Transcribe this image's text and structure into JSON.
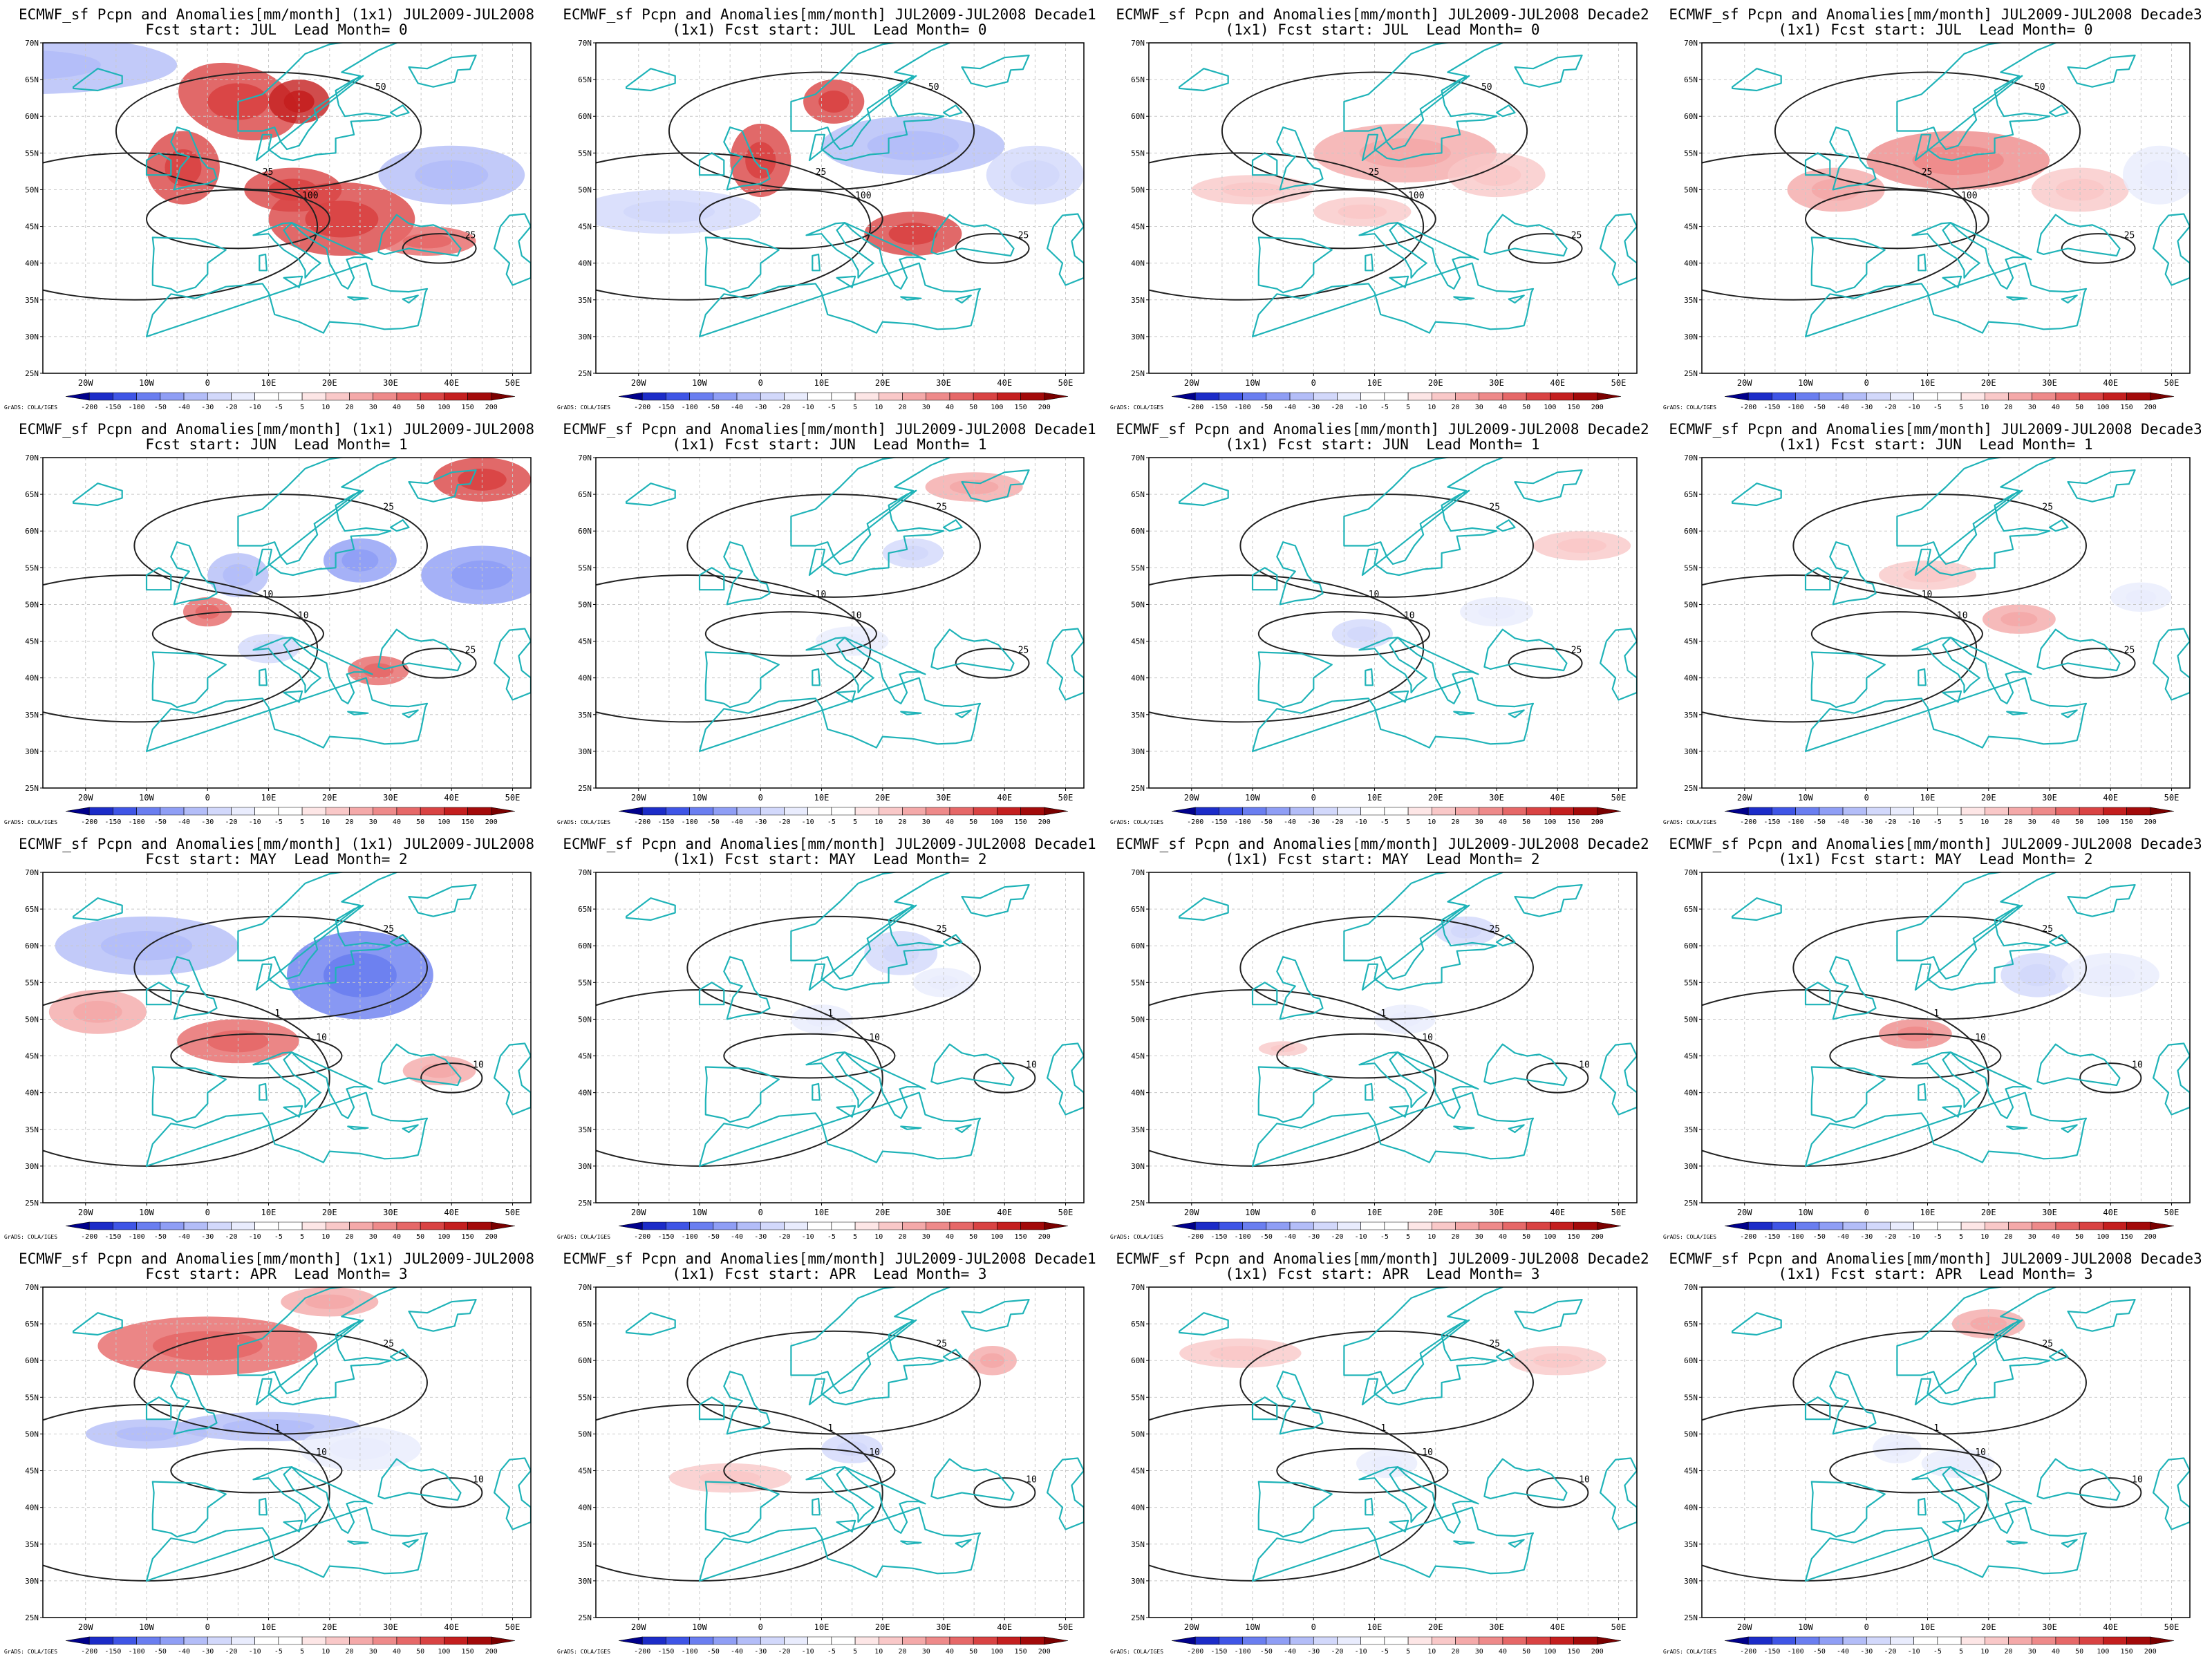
{
  "figure": {
    "rows": [
      {
        "panels": [
          {
            "title_line1": "ECMWF_sf Pcpn and Anomalies[mm/month] (1x1) JUL2009-JUL2008",
            "title_line2": "Fcst start: JUL  Lead Month= 0"
          },
          {
            "title_line1": "ECMWF_sf Pcpn and Anomalies[mm/month] JUL2009-JUL2008 Decade1",
            "title_line2": "(1x1) Fcst start: JUL  Lead Month= 0"
          },
          {
            "title_line1": "ECMWF_sf Pcpn and Anomalies[mm/month] JUL2009-JUL2008 Decade2",
            "title_line2": "(1x1) Fcst start: JUL  Lead Month= 0"
          },
          {
            "title_line1": "ECMWF_sf Pcpn and Anomalies[mm/month] JUL2009-JUL2008 Decade3",
            "title_line2": "(1x1) Fcst start: JUL  Lead Month= 0"
          }
        ]
      },
      {
        "panels": [
          {
            "title_line1": "ECMWF_sf Pcpn and Anomalies[mm/month] (1x1) JUL2009-JUL2008",
            "title_line2": "Fcst start: JUN  Lead Month= 1"
          },
          {
            "title_line1": "ECMWF_sf Pcpn and Anomalies[mm/month] JUL2009-JUL2008 Decade1",
            "title_line2": "(1x1) Fcst start: JUN  Lead Month= 1"
          },
          {
            "title_line1": "ECMWF_sf Pcpn and Anomalies[mm/month] JUL2009-JUL2008 Decade2",
            "title_line2": "(1x1) Fcst start: JUN  Lead Month= 1"
          },
          {
            "title_line1": "ECMWF_sf Pcpn and Anomalies[mm/month] JUL2009-JUL2008 Decade3",
            "title_line2": "(1x1) Fcst start: JUN  Lead Month= 1"
          }
        ]
      },
      {
        "panels": [
          {
            "title_line1": "ECMWF_sf Pcpn and Anomalies[mm/month] (1x1) JUL2009-JUL2008",
            "title_line2": "Fcst start: MAY  Lead Month= 2"
          },
          {
            "title_line1": "ECMWF_sf Pcpn and Anomalies[mm/month] JUL2009-JUL2008 Decade1",
            "title_line2": "(1x1) Fcst start: MAY  Lead Month= 2"
          },
          {
            "title_line1": "ECMWF_sf Pcpn and Anomalies[mm/month] JUL2009-JUL2008 Decade2",
            "title_line2": "(1x1) Fcst start: MAY  Lead Month= 2"
          },
          {
            "title_line1": "ECMWF_sf Pcpn and Anomalies[mm/month] JUL2009-JUL2008 Decade3",
            "title_line2": "(1x1) Fcst start: MAY  Lead Month= 2"
          }
        ]
      },
      {
        "panels": [
          {
            "title_line1": "ECMWF_sf Pcpn and Anomalies[mm/month] (1x1) JUL2009-JUL2008",
            "title_line2": "Fcst start: APR  Lead Month= 3"
          },
          {
            "title_line1": "ECMWF_sf Pcpn and Anomalies[mm/month] JUL2009-JUL2008 Decade1",
            "title_line2": "(1x1) Fcst start: APR  Lead Month= 3"
          },
          {
            "title_line1": "ECMWF_sf Pcpn and Anomalies[mm/month] JUL2009-JUL2008 Decade2",
            "title_line2": "(1x1) Fcst start: APR  Lead Month= 3"
          },
          {
            "title_line1": "ECMWF_sf Pcpn and Anomalies[mm/month] JUL2009-JUL2008 Decade3",
            "title_line2": "(1x1) Fcst start: APR  Lead Month= 3"
          }
        ]
      }
    ]
  },
  "map": {
    "lat_labels": [
      "70N",
      "65N",
      "60N",
      "55N",
      "50N",
      "45N",
      "40N",
      "35N",
      "30N",
      "25N"
    ],
    "lon_labels": [
      "20W",
      "10W",
      "0",
      "10E",
      "20E",
      "30E",
      "40E",
      "50E"
    ],
    "credit": "GrADS: COLA/IGES"
  },
  "colorbar": {
    "labels": [
      "-200",
      "-150",
      "-100",
      "-50",
      "-40",
      "-30",
      "-20",
      "-10",
      "-5",
      "5",
      "10",
      "20",
      "30",
      "40",
      "50",
      "100",
      "150",
      "200"
    ],
    "colors": [
      "#00008b",
      "#1c2cc8",
      "#3f55e6",
      "#6a7ef0",
      "#8f9ef5",
      "#b3bdf8",
      "#d2d8fb",
      "#e9ecfd",
      "#ffffff",
      "#ffffff",
      "#fde6e6",
      "#f9c8c8",
      "#f4a9a9",
      "#ee8a8a",
      "#e66868",
      "#d94343",
      "#c41f1f",
      "#a30a0a",
      "#7a0000"
    ]
  },
  "colors": {
    "coast": "#1fb3b8",
    "contour": "#222222",
    "grid": "#c8c8c8",
    "positive": "#e04545",
    "negative": "#4a5fe6"
  },
  "contour_labels": [
    "1",
    "10",
    "25",
    "50",
    "100"
  ]
}
